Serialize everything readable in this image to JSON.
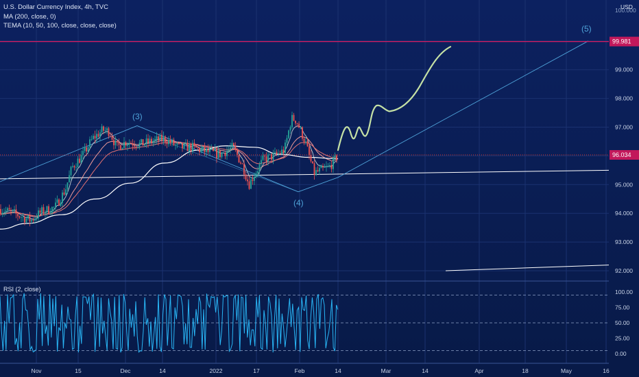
{
  "header": {
    "title": "U.S. Dollar Currency Index, 4h, TVC",
    "indicator_ma": "MA (200, close, 0)",
    "indicator_tema": "TEMA (10, 50, 100, close, close, close)",
    "currency": "USD"
  },
  "price_scale": {
    "ticks": [
      "93.000",
      "94.000",
      "95.000",
      "96.000",
      "97.000",
      "98.000",
      "99.000",
      "100.000"
    ],
    "ylim": [
      91.8,
      100.35
    ],
    "current_price_label": "96.034",
    "current_price": 96.034,
    "target_price_label": "99.981",
    "target_price": 99.981,
    "label_colors": {
      "current": "#c2185b",
      "target": "#c2185b"
    }
  },
  "time_axis": {
    "labels": [
      "Nov",
      "15",
      "Dec",
      "14",
      "2022",
      "17",
      "Feb",
      "14",
      "Mar",
      "14",
      "Apr",
      "18",
      "May",
      "16"
    ]
  },
  "wave_labels": [
    "(3)",
    "(4)",
    "(5)"
  ],
  "rsi_panel": {
    "title": "RSI (2, close)",
    "ticks": [
      "100.00",
      "75.00",
      "50.00",
      "25.00",
      "0.00"
    ],
    "levels": [
      95,
      50,
      5
    ],
    "color": "#29b6f6"
  },
  "chart_data": {
    "type": "line",
    "title": "U.S. Dollar Currency Index, 4h, TVC",
    "ylim": [
      91.8,
      100.35
    ],
    "x": [
      "Nov",
      "15",
      "Dec",
      "14",
      "2022",
      "17",
      "Feb",
      "14",
      "Mar",
      "14",
      "Apr",
      "18",
      "May",
      "16"
    ],
    "series": [
      {
        "name": "U.S. Dollar Currency Index",
        "color": "#e0e0e0",
        "x": [
          "Nov",
          "15",
          "Dec",
          "14",
          "2022",
          "17",
          "Feb",
          "14"
        ],
        "values": [
          93.9,
          95.5,
          96.2,
          96.2,
          96.3,
          95.3,
          96.6,
          95.9
        ]
      },
      {
        "name": "MA (200, close, 0)",
        "color": "#ffffff",
        "x": [
          "Nov",
          "15",
          "Dec",
          "14",
          "2022",
          "17",
          "Feb",
          "14"
        ],
        "values": [
          93.6,
          94.3,
          95.2,
          96.0,
          96.3,
          96.1,
          95.9,
          95.9
        ]
      },
      {
        "name": "Projection",
        "color": "#c5e1a5",
        "x": [
          "14",
          "Mar",
          "14"
        ],
        "values": [
          96.0,
          97.7,
          99.8
        ]
      },
      {
        "name": "Elliott wave channel",
        "color": "#4fc3f7",
        "x": [
          "Dec",
          "Feb",
          "May"
        ],
        "values": [
          97.0,
          94.8,
          100.0
        ]
      }
    ]
  }
}
